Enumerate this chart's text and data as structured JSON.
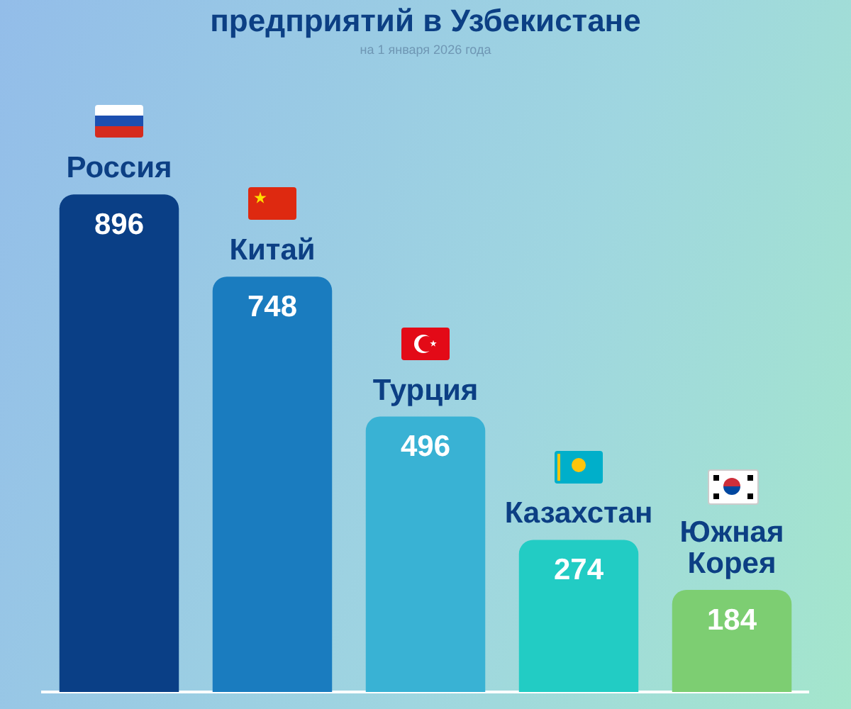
{
  "chart_data": {
    "type": "bar",
    "title": "предприятий в Узбекистане",
    "subtitle": "на 1 января 2026 года",
    "categories": [
      "Россия",
      "Китай",
      "Турция",
      "Казахстан",
      "Южная Корея"
    ],
    "values": [
      896,
      748,
      496,
      274,
      184
    ],
    "colors": [
      "#0a3f86",
      "#1a7cbf",
      "#39b2d4",
      "#22ccc4",
      "#7dce72"
    ],
    "data_labels": true,
    "grid": false,
    "legend": false,
    "tick_labels": false
  }
}
